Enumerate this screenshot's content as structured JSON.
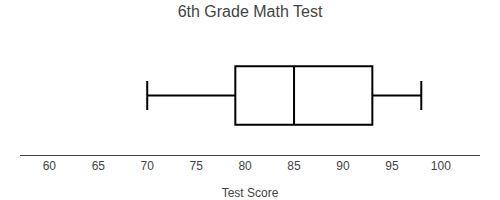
{
  "chart_data": {
    "type": "box",
    "title": "6th Grade Math Test",
    "xlabel": "Test Score",
    "whisker_min": 70,
    "q1": 79,
    "median": 85,
    "q3": 93,
    "whisker_max": 98,
    "xlim": [
      57,
      104
    ],
    "xticks": [
      60,
      65,
      70,
      75,
      80,
      85,
      90,
      95,
      100
    ],
    "orientation": "horizontal",
    "color": "#000000",
    "grid": false,
    "tick_labels": "x"
  }
}
